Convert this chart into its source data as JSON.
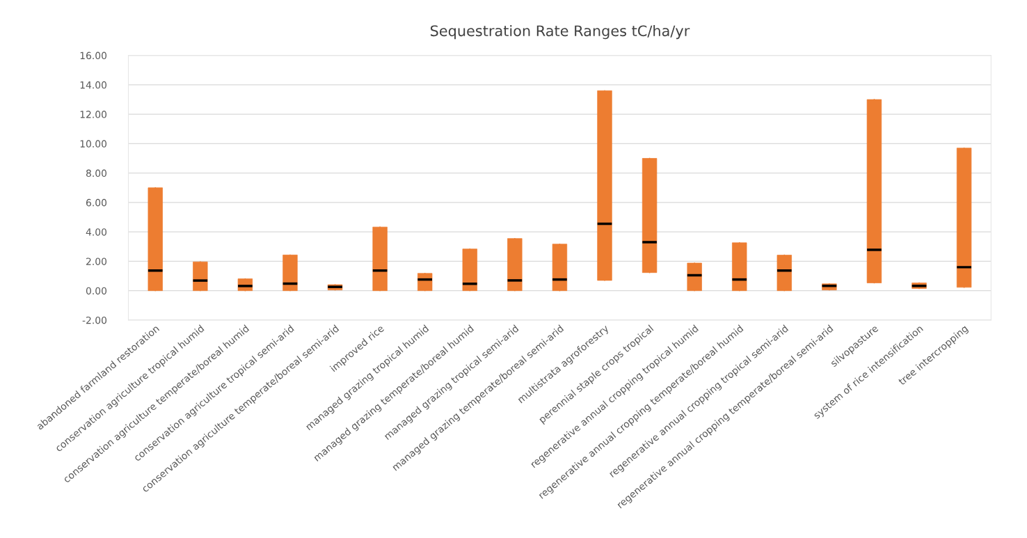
{
  "chart_data": {
    "type": "box",
    "title": "Sequestration Rate Ranges tC/ha/yr",
    "categories": [
      "abandoned farmland restoration",
      "conservation agriculture tropical humid",
      "conservation agriculture temperate/boreal humid",
      "conservation agriculture tropical semi-arid",
      "conservation agriculture temperate/boreal semi-arid",
      "improved rice",
      "managed grazing tropical humid",
      "managed grazing temperate/boreal humid",
      "managed grazing tropical semi-arid",
      "managed grazing temperate/boreal semi-arid",
      "multistrata agroforestry",
      "perennial staple crops tropical",
      "regenerative annual cropping tropical humid",
      "regenerative annual cropping temperate/boreal humid",
      "regenerative annual cropping tropical semi-arid",
      "regenerative annual cropping temperate/boreal semi-arid",
      "silvopasture",
      "system of rice intensification",
      "tree intercropping"
    ],
    "color": "#ed7d31",
    "boxes": [
      {
        "low": 0,
        "q1": 0,
        "median": 1.37,
        "q3": 7.0,
        "high": 7.0
      },
      {
        "low": 0,
        "q1": 0,
        "median": 0.69,
        "q3": 1.96,
        "high": 1.96
      },
      {
        "low": 0,
        "q1": 0,
        "median": 0.32,
        "q3": 0.81,
        "high": 0.81
      },
      {
        "low": 0,
        "q1": 0,
        "median": 0.48,
        "q3": 2.43,
        "high": 2.43
      },
      {
        "low": 0.05,
        "q1": 0.05,
        "median": 0.26,
        "q3": 0.41,
        "high": 0.41
      },
      {
        "low": 0,
        "q1": 0,
        "median": 1.37,
        "q3": 4.33,
        "high": 4.33
      },
      {
        "low": 0,
        "q1": 0,
        "median": 0.76,
        "q3": 1.18,
        "high": 1.18
      },
      {
        "low": 0,
        "q1": 0,
        "median": 0.47,
        "q3": 2.84,
        "high": 2.84
      },
      {
        "low": 0,
        "q1": 0,
        "median": 0.7,
        "q3": 3.55,
        "high": 3.55
      },
      {
        "low": 0,
        "q1": 0,
        "median": 0.76,
        "q3": 3.17,
        "high": 3.17
      },
      {
        "low": 0.7,
        "q1": 0.7,
        "median": 4.55,
        "q3": 13.6,
        "high": 13.6
      },
      {
        "low": 1.23,
        "q1": 1.23,
        "median": 3.3,
        "q3": 9.0,
        "high": 9.0
      },
      {
        "low": 0,
        "q1": 0,
        "median": 1.05,
        "q3": 1.88,
        "high": 1.88
      },
      {
        "low": 0,
        "q1": 0,
        "median": 0.76,
        "q3": 3.26,
        "high": 3.26
      },
      {
        "low": 0,
        "q1": 0,
        "median": 1.37,
        "q3": 2.42,
        "high": 2.42
      },
      {
        "low": 0.05,
        "q1": 0.05,
        "median": 0.33,
        "q3": 0.47,
        "high": 0.47
      },
      {
        "low": 0.53,
        "q1": 0.53,
        "median": 2.78,
        "q3": 13.0,
        "high": 13.0
      },
      {
        "low": 0.15,
        "q1": 0.15,
        "median": 0.33,
        "q3": 0.53,
        "high": 0.53
      },
      {
        "low": 0.23,
        "q1": 0.23,
        "median": 1.6,
        "q3": 9.7,
        "high": 9.7
      }
    ],
    "ylim": [
      -2,
      16
    ],
    "yticks": [
      {
        "value": -2,
        "label": "-2.00"
      },
      {
        "value": 0,
        "label": "0.00"
      },
      {
        "value": 2,
        "label": "2.00"
      },
      {
        "value": 4,
        "label": "4.00"
      },
      {
        "value": 6,
        "label": "6.00"
      },
      {
        "value": 8,
        "label": "8.00"
      },
      {
        "value": 10,
        "label": "10.00"
      },
      {
        "value": 12,
        "label": "12.00"
      },
      {
        "value": 14,
        "label": "14.00"
      },
      {
        "value": 16,
        "label": "16.00"
      }
    ],
    "grid": "y"
  }
}
